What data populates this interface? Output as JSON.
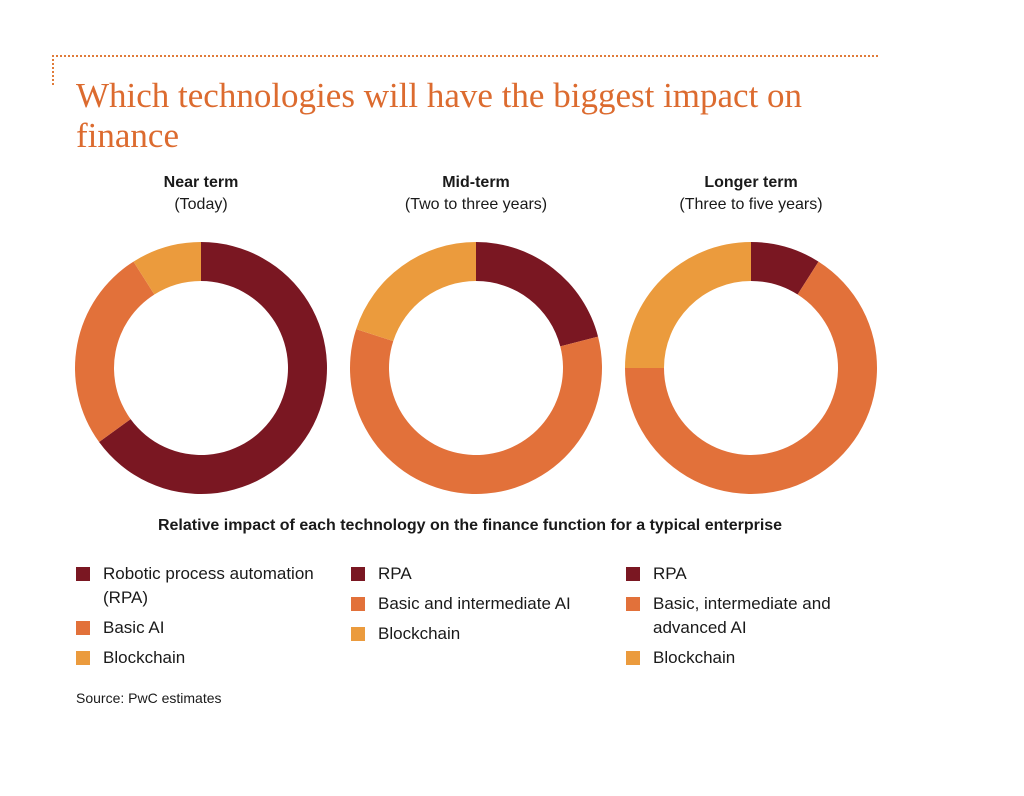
{
  "title": "Which technologies will have the biggest impact on finance",
  "colors": {
    "rpa": "#7a1722",
    "ai": "#e2713a",
    "blockchain": "#eb9b3d",
    "accent": "#dc6b2f"
  },
  "chart_data": [
    {
      "type": "pie",
      "style": "donut",
      "title": "Near term",
      "subtitle": "(Today)",
      "series": [
        {
          "name": "Robotic process automation (RPA)",
          "value": 65
        },
        {
          "name": "Basic AI",
          "value": 26
        },
        {
          "name": "Blockchain",
          "value": 9
        }
      ]
    },
    {
      "type": "pie",
      "style": "donut",
      "title": "Mid-term",
      "subtitle": "(Two to three years)",
      "series": [
        {
          "name": "RPA",
          "value": 21
        },
        {
          "name": "Basic and intermediate AI",
          "value": 59
        },
        {
          "name": "Blockchain",
          "value": 20
        }
      ]
    },
    {
      "type": "pie",
      "style": "donut",
      "title": "Longer term",
      "subtitle": "(Three to five years)",
      "series": [
        {
          "name": "RPA",
          "value": 9
        },
        {
          "name": "Basic, intermediate and advanced AI",
          "value": 66
        },
        {
          "name": "Blockchain",
          "value": 25
        }
      ]
    }
  ],
  "caption": "Relative impact of each technology on the finance function for a typical enterprise",
  "legends": [
    [
      "Robotic process automation (RPA)",
      "Basic AI",
      "Blockchain"
    ],
    [
      "RPA",
      "Basic and intermediate AI",
      "Blockchain"
    ],
    [
      "RPA",
      "Basic, intermediate and advanced AI",
      "Blockchain"
    ]
  ],
  "source": "Source: PwC estimates"
}
